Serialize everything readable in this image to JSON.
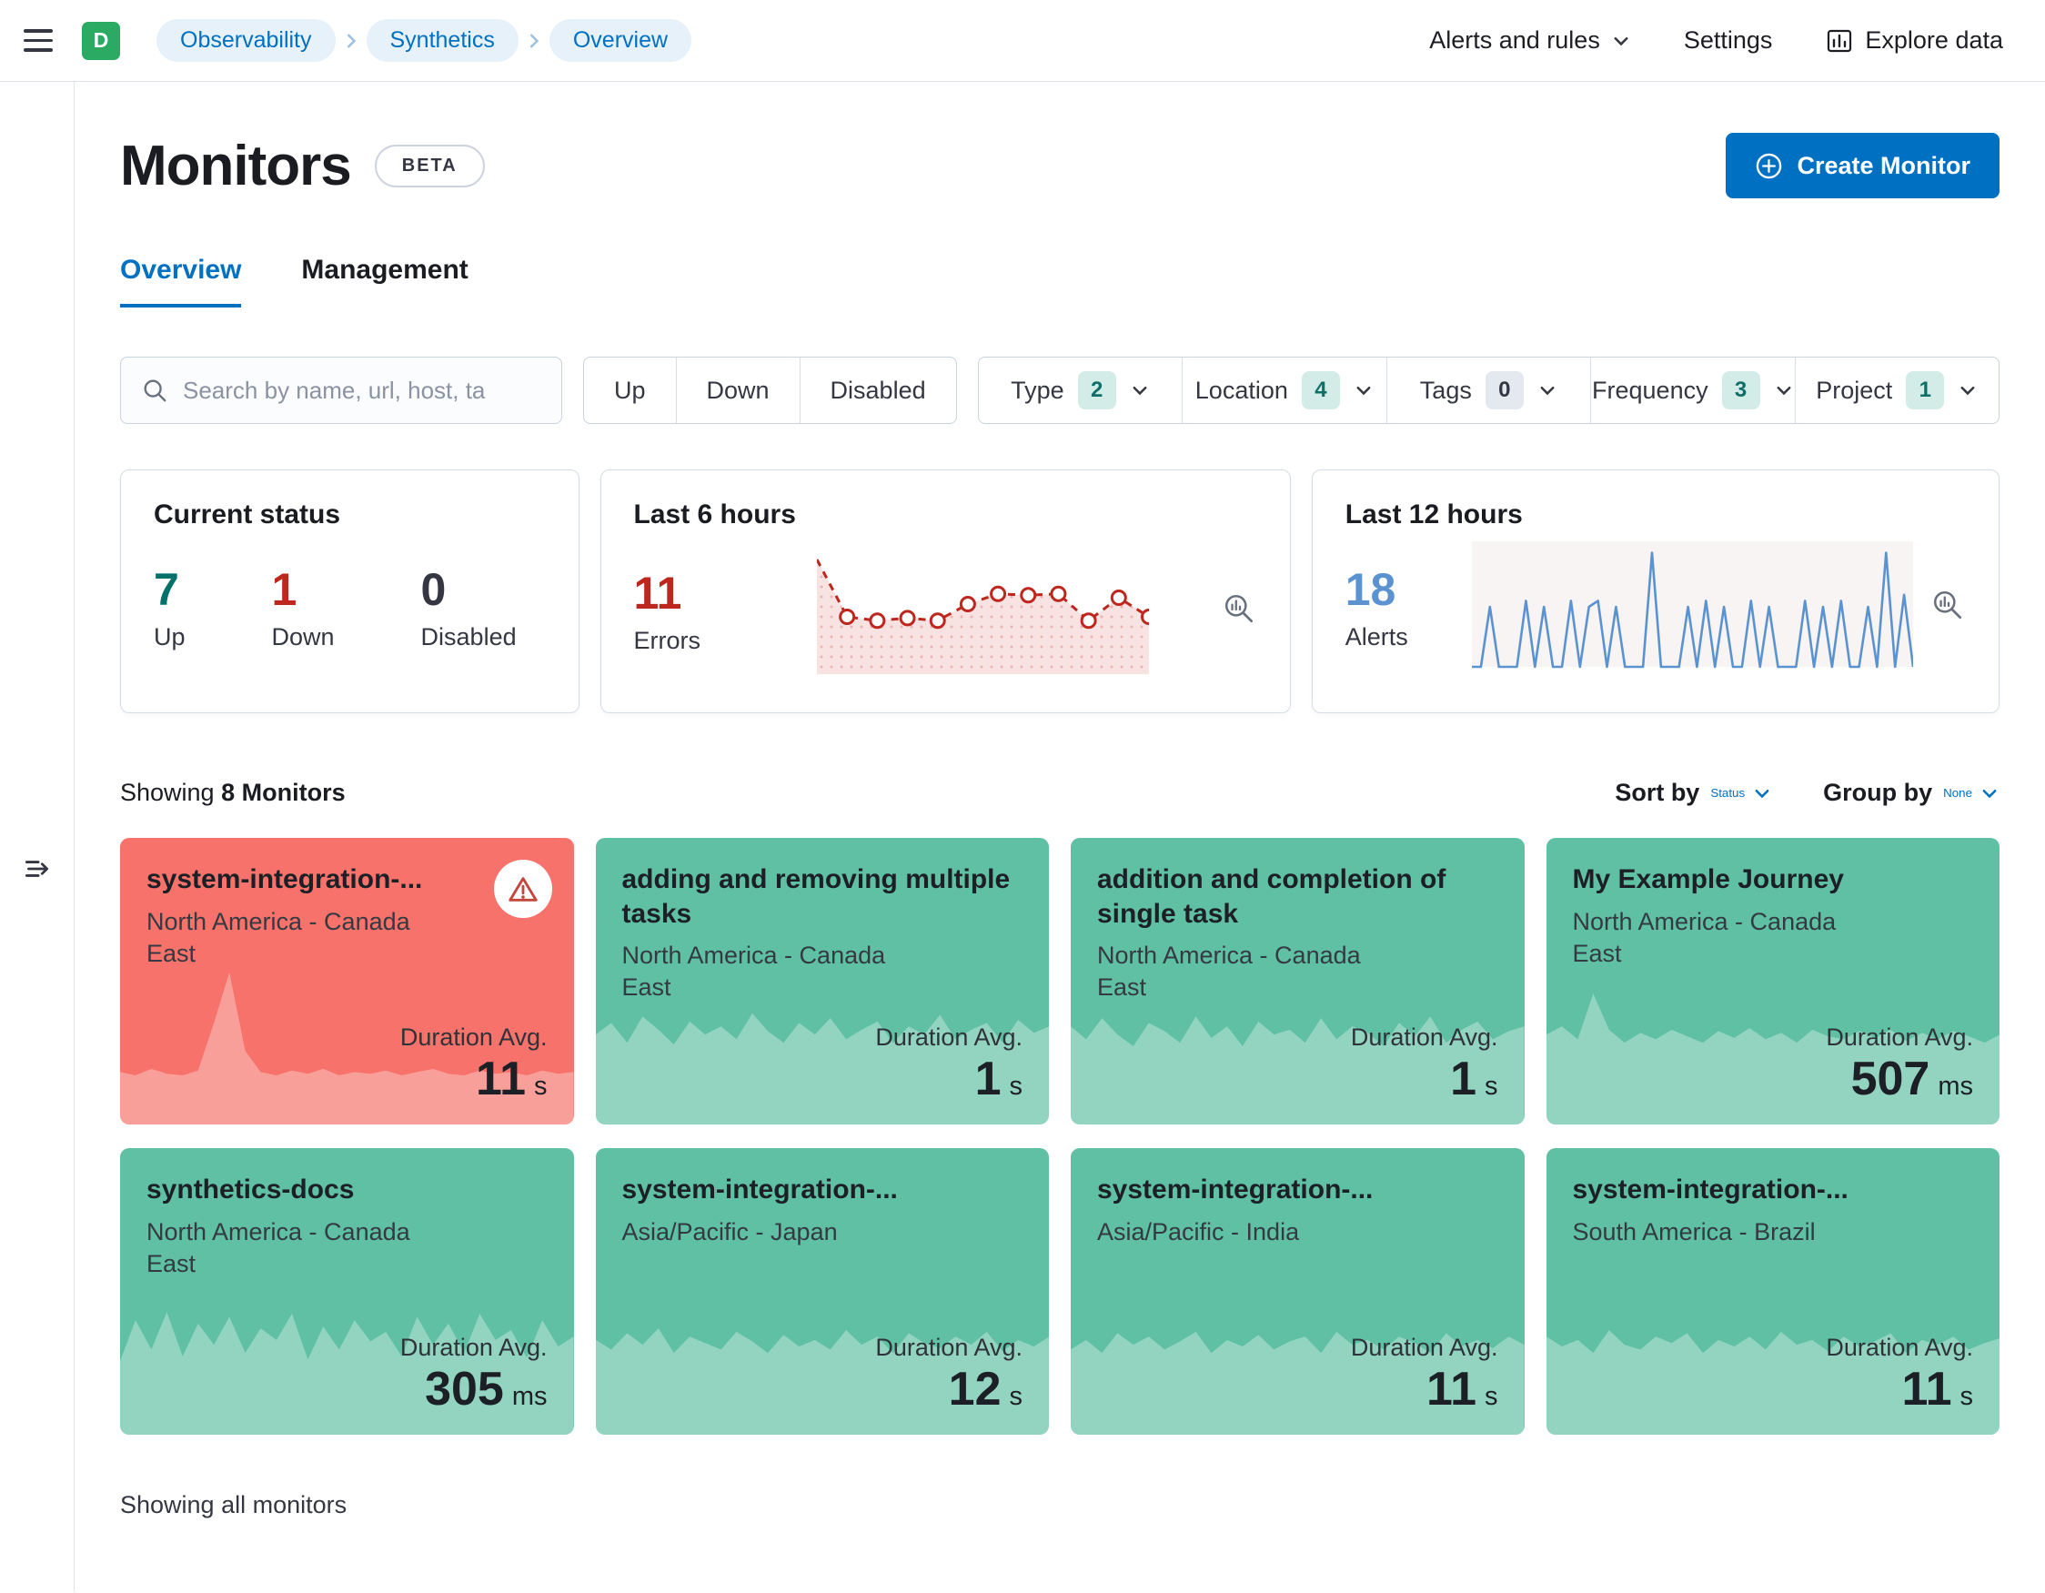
{
  "colors": {
    "primary": "#0071c2",
    "success_text": "#00726b",
    "danger_text": "#bd271e",
    "alerts_text": "#5b93d0",
    "monitor_up_bg": "#5fc0a3",
    "monitor_down_bg": "#f6726a"
  },
  "topbar": {
    "avatar": "D",
    "breadcrumbs": [
      "Observability",
      "Synthetics",
      "Overview"
    ],
    "alerts_label": "Alerts and rules",
    "settings_label": "Settings",
    "explore_label": "Explore data"
  },
  "page": {
    "title": "Monitors",
    "beta": "BETA",
    "create_label": "Create Monitor",
    "tabs": [
      {
        "label": "Overview",
        "active": true
      },
      {
        "label": "Management",
        "active": false
      }
    ],
    "search_placeholder": "Search by name, url, host, ta",
    "status_filters": [
      "Up",
      "Down",
      "Disabled"
    ],
    "filters": [
      {
        "label": "Type",
        "count": "2"
      },
      {
        "label": "Location",
        "count": "4"
      },
      {
        "label": "Tags",
        "count": "0"
      },
      {
        "label": "Frequency",
        "count": "3"
      },
      {
        "label": "Project",
        "count": "1"
      }
    ],
    "showing_prefix": "Showing",
    "showing_count": "8 Monitors",
    "sort_label": "Sort by",
    "sort_value": "Status",
    "group_label": "Group by",
    "group_value": "None",
    "duration_label": "Duration Avg.",
    "footer": "Showing all monitors"
  },
  "stats": {
    "current": {
      "title": "Current status",
      "items": [
        {
          "value": "7",
          "label": "Up",
          "color": "#00726b"
        },
        {
          "value": "1",
          "label": "Down",
          "color": "#bd271e"
        },
        {
          "value": "0",
          "label": "Disabled",
          "color": "#343741"
        }
      ]
    },
    "last6": {
      "title": "Last 6 hours",
      "value": "11",
      "label": "Errors",
      "series": [
        0.9,
        0.45,
        0.42,
        0.44,
        0.42,
        0.55,
        0.63,
        0.62,
        0.63,
        0.42,
        0.6,
        0.45
      ]
    },
    "last12": {
      "title": "Last 12 hours",
      "value": "18",
      "label": "Alerts",
      "series": [
        0,
        0,
        0.5,
        0,
        0,
        0,
        0.55,
        0,
        0.5,
        0,
        0,
        0.55,
        0,
        0.5,
        0.55,
        0,
        0.5,
        0,
        0,
        0,
        0.95,
        0,
        0,
        0,
        0.5,
        0,
        0.55,
        0,
        0.5,
        0,
        0,
        0.55,
        0,
        0.5,
        0,
        0,
        0,
        0.55,
        0,
        0.5,
        0,
        0.55,
        0,
        0,
        0.5,
        0,
        0.95,
        0,
        0.6,
        0
      ]
    }
  },
  "monitors": [
    {
      "name": "system-integration-...",
      "location": "North America - Canada East",
      "duration": "11",
      "unit": "s",
      "status": "down",
      "spark": [
        0.32,
        0.3,
        0.34,
        0.31,
        0.3,
        0.33,
        0.62,
        0.93,
        0.45,
        0.32,
        0.3,
        0.33,
        0.31,
        0.34,
        0.3,
        0.32,
        0.31,
        0.33,
        0.3,
        0.32,
        0.34,
        0.31,
        0.3,
        0.33,
        0.31,
        0.32,
        0.3,
        0.33,
        0.31,
        0.32
      ]
    },
    {
      "name": "adding and removing multiple tasks",
      "location": "North America - Canada East",
      "duration": "1",
      "unit": "s",
      "status": "up",
      "spark": [
        0.55,
        0.62,
        0.5,
        0.66,
        0.58,
        0.49,
        0.63,
        0.55,
        0.6,
        0.52,
        0.68,
        0.57,
        0.5,
        0.62,
        0.55,
        0.65,
        0.52,
        0.58,
        0.63,
        0.5,
        0.6,
        0.55,
        0.67,
        0.52,
        0.58,
        0.62,
        0.5,
        0.64,
        0.56,
        0.6
      ]
    },
    {
      "name": "addition and completion of single task",
      "location": "North America - Canada East",
      "duration": "1",
      "unit": "s",
      "status": "up",
      "spark": [
        0.6,
        0.52,
        0.65,
        0.55,
        0.48,
        0.62,
        0.57,
        0.5,
        0.66,
        0.53,
        0.6,
        0.48,
        0.63,
        0.55,
        0.58,
        0.5,
        0.65,
        0.52,
        0.6,
        0.56,
        0.48,
        0.62,
        0.54,
        0.66,
        0.5,
        0.58,
        0.63,
        0.52,
        0.57,
        0.6
      ]
    },
    {
      "name": "My Example Journey",
      "location": "North America - Canada East",
      "duration": "507",
      "unit": "ms",
      "status": "up",
      "spark": [
        0.55,
        0.6,
        0.52,
        0.8,
        0.58,
        0.5,
        0.56,
        0.52,
        0.58,
        0.54,
        0.5,
        0.57,
        0.53,
        0.59,
        0.52,
        0.56,
        0.5,
        0.58,
        0.54,
        0.52,
        0.57,
        0.53,
        0.58,
        0.51,
        0.56,
        0.52,
        0.57,
        0.54,
        0.5,
        0.55
      ]
    },
    {
      "name": "synthetics-docs",
      "location": "North America - Canada East",
      "duration": "305",
      "unit": "ms",
      "status": "up",
      "spark": [
        0.45,
        0.7,
        0.52,
        0.75,
        0.48,
        0.68,
        0.55,
        0.72,
        0.5,
        0.65,
        0.58,
        0.74,
        0.46,
        0.66,
        0.52,
        0.7,
        0.57,
        0.63,
        0.48,
        0.72,
        0.55,
        0.68,
        0.5,
        0.74,
        0.58,
        0.64,
        0.47,
        0.7,
        0.54,
        0.6
      ]
    },
    {
      "name": "system-integration-...",
      "location": "Asia/Pacific - Japan",
      "duration": "12",
      "unit": "s",
      "status": "up",
      "spark": [
        0.58,
        0.52,
        0.62,
        0.55,
        0.65,
        0.5,
        0.6,
        0.56,
        0.52,
        0.63,
        0.57,
        0.5,
        0.61,
        0.54,
        0.58,
        0.52,
        0.64,
        0.55,
        0.6,
        0.5,
        0.62,
        0.56,
        0.53,
        0.6,
        0.55,
        0.63,
        0.51,
        0.58,
        0.54,
        0.6
      ]
    },
    {
      "name": "system-integration-...",
      "location": "Asia/Pacific - India",
      "duration": "11",
      "unit": "s",
      "status": "up",
      "spark": [
        0.52,
        0.58,
        0.5,
        0.62,
        0.55,
        0.6,
        0.52,
        0.57,
        0.63,
        0.5,
        0.58,
        0.54,
        0.61,
        0.52,
        0.57,
        0.6,
        0.5,
        0.63,
        0.55,
        0.58,
        0.52,
        0.6,
        0.56,
        0.5,
        0.62,
        0.54,
        0.58,
        0.53,
        0.6,
        0.55
      ]
    },
    {
      "name": "system-integration-...",
      "location": "South America - Brazil",
      "duration": "11",
      "unit": "s",
      "status": "up",
      "spark": [
        0.6,
        0.54,
        0.58,
        0.5,
        0.64,
        0.55,
        0.52,
        0.6,
        0.56,
        0.62,
        0.5,
        0.58,
        0.54,
        0.6,
        0.52,
        0.63,
        0.55,
        0.58,
        0.51,
        0.6,
        0.54,
        0.57,
        0.62,
        0.5,
        0.58,
        0.55,
        0.6,
        0.52,
        0.56,
        0.59
      ]
    }
  ]
}
